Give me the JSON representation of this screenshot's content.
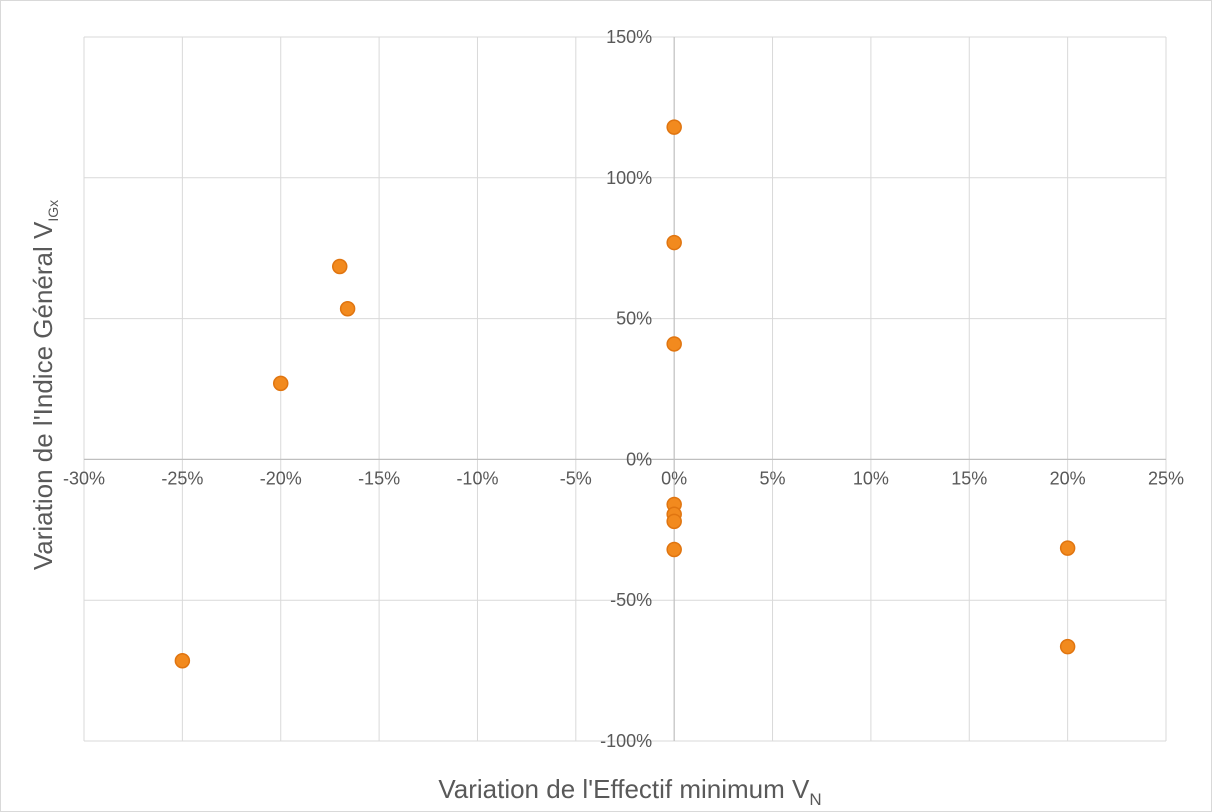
{
  "chart_data": {
    "type": "scatter",
    "title": "",
    "xlabel": "Variation de l'Effectif minimum V",
    "xlabel_subscript": "N",
    "ylabel": "Variation de l'Indice Général V",
    "ylabel_subscript": "IGx",
    "xlim": [
      -30,
      25
    ],
    "ylim": [
      -100,
      150
    ],
    "x_ticks": [
      -30,
      -25,
      -20,
      -15,
      -10,
      -5,
      0,
      5,
      10,
      15,
      20,
      25
    ],
    "y_ticks": [
      -100,
      -50,
      0,
      50,
      100,
      150
    ],
    "x_tick_labels": [
      "-30%",
      "-25%",
      "-20%",
      "-15%",
      "-10%",
      "-5%",
      "0%",
      "5%",
      "10%",
      "15%",
      "20%",
      "25%"
    ],
    "y_tick_labels": [
      "-100%",
      "-50%",
      "0%",
      "50%",
      "100%",
      "150%"
    ],
    "grid": true,
    "legend": "none",
    "marker_color": "#f28a1e",
    "marker_edge_color": "#e07510",
    "points": [
      {
        "x": 0,
        "y": 118
      },
      {
        "x": 0,
        "y": 77
      },
      {
        "x": 0,
        "y": 41
      },
      {
        "x": 0,
        "y": -16
      },
      {
        "x": 0,
        "y": -19.5
      },
      {
        "x": 0,
        "y": -22
      },
      {
        "x": 0,
        "y": -32
      },
      {
        "x": -17,
        "y": 68.5
      },
      {
        "x": -16.6,
        "y": 53.5
      },
      {
        "x": -20,
        "y": 27
      },
      {
        "x": -25,
        "y": -71.5
      },
      {
        "x": 20,
        "y": -31.5
      },
      {
        "x": 20,
        "y": -66.5
      }
    ]
  }
}
